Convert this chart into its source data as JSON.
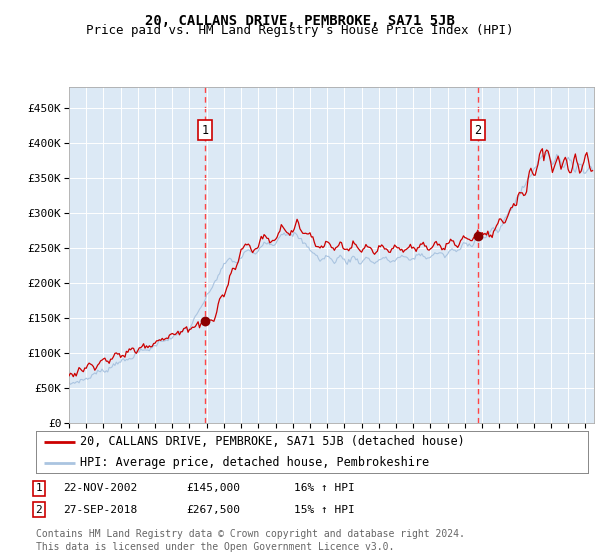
{
  "title": "20, CALLANS DRIVE, PEMBROKE, SA71 5JB",
  "subtitle": "Price paid vs. HM Land Registry's House Price Index (HPI)",
  "xlabel": "",
  "ylabel": "",
  "background_color": "#dce9f5",
  "plot_bg_color": "#dce9f5",
  "red_line_color": "#cc0000",
  "blue_line_color": "#aac4e0",
  "marker_color": "#8b0000",
  "dashed_line_color": "#ff4444",
  "ylim": [
    0,
    480000
  ],
  "yticks": [
    0,
    50000,
    100000,
    150000,
    200000,
    250000,
    300000,
    350000,
    400000,
    450000
  ],
  "ytick_labels": [
    "£0",
    "£50K",
    "£100K",
    "£150K",
    "£200K",
    "£250K",
    "£300K",
    "£350K",
    "£400K",
    "£450K"
  ],
  "xlim_start": 1995.0,
  "xlim_end": 2025.5,
  "sale1_x": 2002.9,
  "sale1_y": 145000,
  "sale1_label": "1",
  "sale2_x": 2018.75,
  "sale2_y": 267500,
  "sale2_label": "2",
  "legend_line1": "20, CALLANS DRIVE, PEMBROKE, SA71 5JB (detached house)",
  "legend_line2": "HPI: Average price, detached house, Pembrokeshire",
  "footnote1": "Contains HM Land Registry data © Crown copyright and database right 2024.",
  "footnote2": "This data is licensed under the Open Government Licence v3.0.",
  "table_row1": [
    "1",
    "22-NOV-2002",
    "£145,000",
    "16% ↑ HPI"
  ],
  "table_row2": [
    "2",
    "27-SEP-2018",
    "£267,500",
    "15% ↑ HPI"
  ],
  "title_fontsize": 10,
  "subtitle_fontsize": 9,
  "tick_fontsize": 8,
  "legend_fontsize": 8.5,
  "footnote_fontsize": 7
}
